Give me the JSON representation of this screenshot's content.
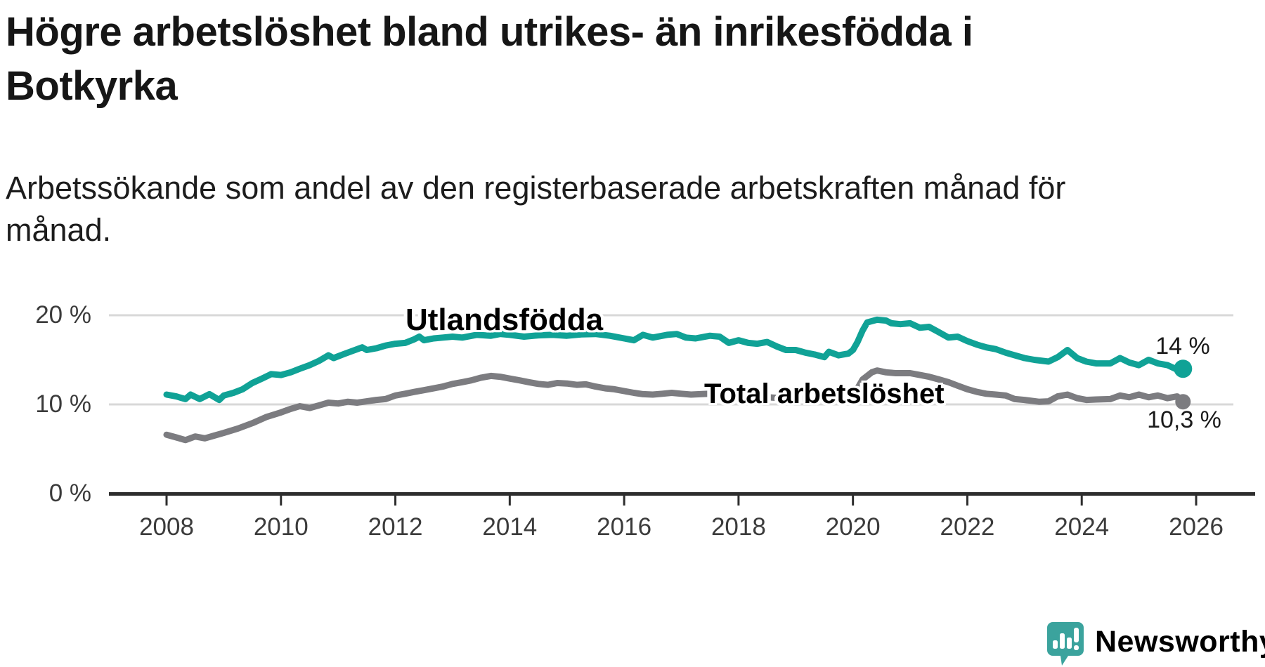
{
  "header": {
    "title": "Högre arbetslöshet bland utrikes- än inrikesfödda i\nBotkyrka",
    "subtitle": "Arbetssökande som andel av den registerbaserade arbetskraften månad för\nmånad."
  },
  "chart_data": {
    "type": "line",
    "x_axis": {
      "ticks": [
        2008,
        2010,
        2012,
        2014,
        2016,
        2018,
        2020,
        2022,
        2024,
        2026
      ],
      "range": [
        2008,
        2025.85
      ]
    },
    "y_axis": {
      "unit": "%",
      "ticks": [
        {
          "value": 20,
          "label": "20 %"
        },
        {
          "value": 10,
          "label": "10 %"
        },
        {
          "value": 0,
          "label": "0 %"
        }
      ],
      "range": [
        0,
        21.5
      ]
    },
    "grid": "horizontal-only",
    "legend_position": "inline-labels",
    "series": [
      {
        "name": "Utlandsfödda",
        "color": "#10a296",
        "end_label": "14 %",
        "end_value": 14.0,
        "points": [
          [
            2008.0,
            11.1
          ],
          [
            2008.17,
            10.9
          ],
          [
            2008.33,
            10.6
          ],
          [
            2008.42,
            11.1
          ],
          [
            2008.58,
            10.6
          ],
          [
            2008.75,
            11.15
          ],
          [
            2008.92,
            10.5
          ],
          [
            2009.0,
            11.0
          ],
          [
            2009.17,
            11.3
          ],
          [
            2009.33,
            11.7
          ],
          [
            2009.5,
            12.4
          ],
          [
            2009.67,
            12.9
          ],
          [
            2009.83,
            13.4
          ],
          [
            2010.0,
            13.3
          ],
          [
            2010.17,
            13.6
          ],
          [
            2010.33,
            14.0
          ],
          [
            2010.5,
            14.4
          ],
          [
            2010.67,
            14.9
          ],
          [
            2010.83,
            15.5
          ],
          [
            2010.92,
            15.2
          ],
          [
            2011.08,
            15.6
          ],
          [
            2011.25,
            16.0
          ],
          [
            2011.42,
            16.4
          ],
          [
            2011.5,
            16.1
          ],
          [
            2011.67,
            16.3
          ],
          [
            2011.83,
            16.6
          ],
          [
            2012.0,
            16.8
          ],
          [
            2012.17,
            16.9
          ],
          [
            2012.33,
            17.3
          ],
          [
            2012.42,
            17.6
          ],
          [
            2012.5,
            17.2
          ],
          [
            2012.67,
            17.4
          ],
          [
            2012.83,
            17.5
          ],
          [
            2013.0,
            17.6
          ],
          [
            2013.17,
            17.5
          ],
          [
            2013.42,
            17.8
          ],
          [
            2013.67,
            17.7
          ],
          [
            2013.83,
            17.9
          ],
          [
            2014.0,
            17.8
          ],
          [
            2014.25,
            17.6
          ],
          [
            2014.5,
            17.75
          ],
          [
            2014.75,
            17.8
          ],
          [
            2015.0,
            17.7
          ],
          [
            2015.25,
            17.85
          ],
          [
            2015.5,
            17.9
          ],
          [
            2015.75,
            17.7
          ],
          [
            2016.0,
            17.4
          ],
          [
            2016.17,
            17.2
          ],
          [
            2016.33,
            17.8
          ],
          [
            2016.5,
            17.5
          ],
          [
            2016.75,
            17.8
          ],
          [
            2016.92,
            17.9
          ],
          [
            2017.08,
            17.5
          ],
          [
            2017.25,
            17.4
          ],
          [
            2017.5,
            17.7
          ],
          [
            2017.67,
            17.6
          ],
          [
            2017.83,
            16.9
          ],
          [
            2018.0,
            17.2
          ],
          [
            2018.17,
            16.9
          ],
          [
            2018.33,
            16.8
          ],
          [
            2018.5,
            17.0
          ],
          [
            2018.67,
            16.5
          ],
          [
            2018.83,
            16.1
          ],
          [
            2019.0,
            16.1
          ],
          [
            2019.17,
            15.8
          ],
          [
            2019.33,
            15.6
          ],
          [
            2019.5,
            15.3
          ],
          [
            2019.58,
            15.9
          ],
          [
            2019.75,
            15.5
          ],
          [
            2019.92,
            15.7
          ],
          [
            2020.0,
            16.1
          ],
          [
            2020.08,
            17.0
          ],
          [
            2020.17,
            18.3
          ],
          [
            2020.25,
            19.2
          ],
          [
            2020.42,
            19.5
          ],
          [
            2020.58,
            19.4
          ],
          [
            2020.67,
            19.1
          ],
          [
            2020.83,
            19.0
          ],
          [
            2021.0,
            19.1
          ],
          [
            2021.17,
            18.6
          ],
          [
            2021.33,
            18.7
          ],
          [
            2021.5,
            18.1
          ],
          [
            2021.67,
            17.5
          ],
          [
            2021.83,
            17.6
          ],
          [
            2022.0,
            17.1
          ],
          [
            2022.17,
            16.7
          ],
          [
            2022.33,
            16.4
          ],
          [
            2022.5,
            16.2
          ],
          [
            2022.67,
            15.8
          ],
          [
            2022.83,
            15.5
          ],
          [
            2023.0,
            15.2
          ],
          [
            2023.17,
            15.0
          ],
          [
            2023.42,
            14.8
          ],
          [
            2023.58,
            15.3
          ],
          [
            2023.75,
            16.1
          ],
          [
            2023.92,
            15.2
          ],
          [
            2024.08,
            14.8
          ],
          [
            2024.25,
            14.6
          ],
          [
            2024.5,
            14.6
          ],
          [
            2024.67,
            15.2
          ],
          [
            2024.83,
            14.7
          ],
          [
            2025.0,
            14.4
          ],
          [
            2025.17,
            15.0
          ],
          [
            2025.33,
            14.6
          ],
          [
            2025.5,
            14.4
          ],
          [
            2025.67,
            13.9
          ],
          [
            2025.77,
            14.0
          ]
        ]
      },
      {
        "name": "Total arbetslöshet",
        "color": "#7c7c80",
        "end_label": "10,3 %",
        "end_value": 10.3,
        "points": [
          [
            2008.0,
            6.6
          ],
          [
            2008.17,
            6.3
          ],
          [
            2008.33,
            6.0
          ],
          [
            2008.5,
            6.4
          ],
          [
            2008.67,
            6.2
          ],
          [
            2008.83,
            6.5
          ],
          [
            2009.0,
            6.8
          ],
          [
            2009.25,
            7.3
          ],
          [
            2009.5,
            7.9
          ],
          [
            2009.75,
            8.6
          ],
          [
            2010.0,
            9.1
          ],
          [
            2010.17,
            9.5
          ],
          [
            2010.33,
            9.8
          ],
          [
            2010.5,
            9.6
          ],
          [
            2010.67,
            9.9
          ],
          [
            2010.83,
            10.2
          ],
          [
            2011.0,
            10.1
          ],
          [
            2011.17,
            10.3
          ],
          [
            2011.33,
            10.2
          ],
          [
            2011.5,
            10.35
          ],
          [
            2011.67,
            10.5
          ],
          [
            2011.83,
            10.6
          ],
          [
            2012.0,
            11.0
          ],
          [
            2012.17,
            11.2
          ],
          [
            2012.33,
            11.4
          ],
          [
            2012.5,
            11.6
          ],
          [
            2012.67,
            11.8
          ],
          [
            2012.83,
            12.0
          ],
          [
            2013.0,
            12.3
          ],
          [
            2013.17,
            12.5
          ],
          [
            2013.33,
            12.7
          ],
          [
            2013.5,
            13.0
          ],
          [
            2013.67,
            13.2
          ],
          [
            2013.83,
            13.1
          ],
          [
            2014.0,
            12.9
          ],
          [
            2014.17,
            12.7
          ],
          [
            2014.33,
            12.5
          ],
          [
            2014.5,
            12.3
          ],
          [
            2014.67,
            12.2
          ],
          [
            2014.83,
            12.4
          ],
          [
            2015.0,
            12.35
          ],
          [
            2015.17,
            12.2
          ],
          [
            2015.33,
            12.25
          ],
          [
            2015.5,
            12.0
          ],
          [
            2015.67,
            11.8
          ],
          [
            2015.83,
            11.7
          ],
          [
            2016.0,
            11.5
          ],
          [
            2016.17,
            11.3
          ],
          [
            2016.33,
            11.15
          ],
          [
            2016.5,
            11.1
          ],
          [
            2016.67,
            11.2
          ],
          [
            2016.83,
            11.3
          ],
          [
            2017.0,
            11.2
          ],
          [
            2017.17,
            11.1
          ],
          [
            2017.33,
            11.15
          ],
          [
            2017.5,
            11.2
          ],
          [
            2017.67,
            11.0
          ],
          [
            2017.83,
            11.1
          ],
          [
            2018.0,
            10.95
          ],
          [
            2018.25,
            10.85
          ],
          [
            2018.5,
            10.8
          ],
          [
            2018.75,
            10.7
          ],
          [
            2019.0,
            10.7
          ],
          [
            2019.25,
            10.6
          ],
          [
            2019.5,
            10.55
          ],
          [
            2019.75,
            10.7
          ],
          [
            2019.92,
            10.8
          ],
          [
            2020.0,
            11.0
          ],
          [
            2020.08,
            11.8
          ],
          [
            2020.17,
            12.8
          ],
          [
            2020.33,
            13.6
          ],
          [
            2020.42,
            13.8
          ],
          [
            2020.58,
            13.6
          ],
          [
            2020.75,
            13.5
          ],
          [
            2021.0,
            13.5
          ],
          [
            2021.17,
            13.3
          ],
          [
            2021.33,
            13.1
          ],
          [
            2021.5,
            12.8
          ],
          [
            2021.67,
            12.5
          ],
          [
            2021.83,
            12.1
          ],
          [
            2022.0,
            11.7
          ],
          [
            2022.17,
            11.4
          ],
          [
            2022.33,
            11.2
          ],
          [
            2022.5,
            11.1
          ],
          [
            2022.67,
            11.0
          ],
          [
            2022.83,
            10.6
          ],
          [
            2023.0,
            10.5
          ],
          [
            2023.25,
            10.3
          ],
          [
            2023.42,
            10.35
          ],
          [
            2023.58,
            10.9
          ],
          [
            2023.75,
            11.1
          ],
          [
            2023.92,
            10.7
          ],
          [
            2024.08,
            10.5
          ],
          [
            2024.25,
            10.55
          ],
          [
            2024.5,
            10.6
          ],
          [
            2024.67,
            11.0
          ],
          [
            2024.83,
            10.8
          ],
          [
            2025.0,
            11.1
          ],
          [
            2025.17,
            10.8
          ],
          [
            2025.33,
            11.0
          ],
          [
            2025.5,
            10.7
          ],
          [
            2025.67,
            10.9
          ],
          [
            2025.77,
            10.3
          ]
        ]
      }
    ]
  },
  "branding": {
    "logo_text": "Newsworthy",
    "logo_icon": "newsworthy-speech-bubble-bar-chart-icon",
    "logo_color": "#3ba39d"
  },
  "colors": {
    "background": "#ffffff",
    "grid": "#d8d8d8",
    "axis": "#2d2d2d",
    "tick_text": "#3b3b3b",
    "title_text": "#161616"
  }
}
